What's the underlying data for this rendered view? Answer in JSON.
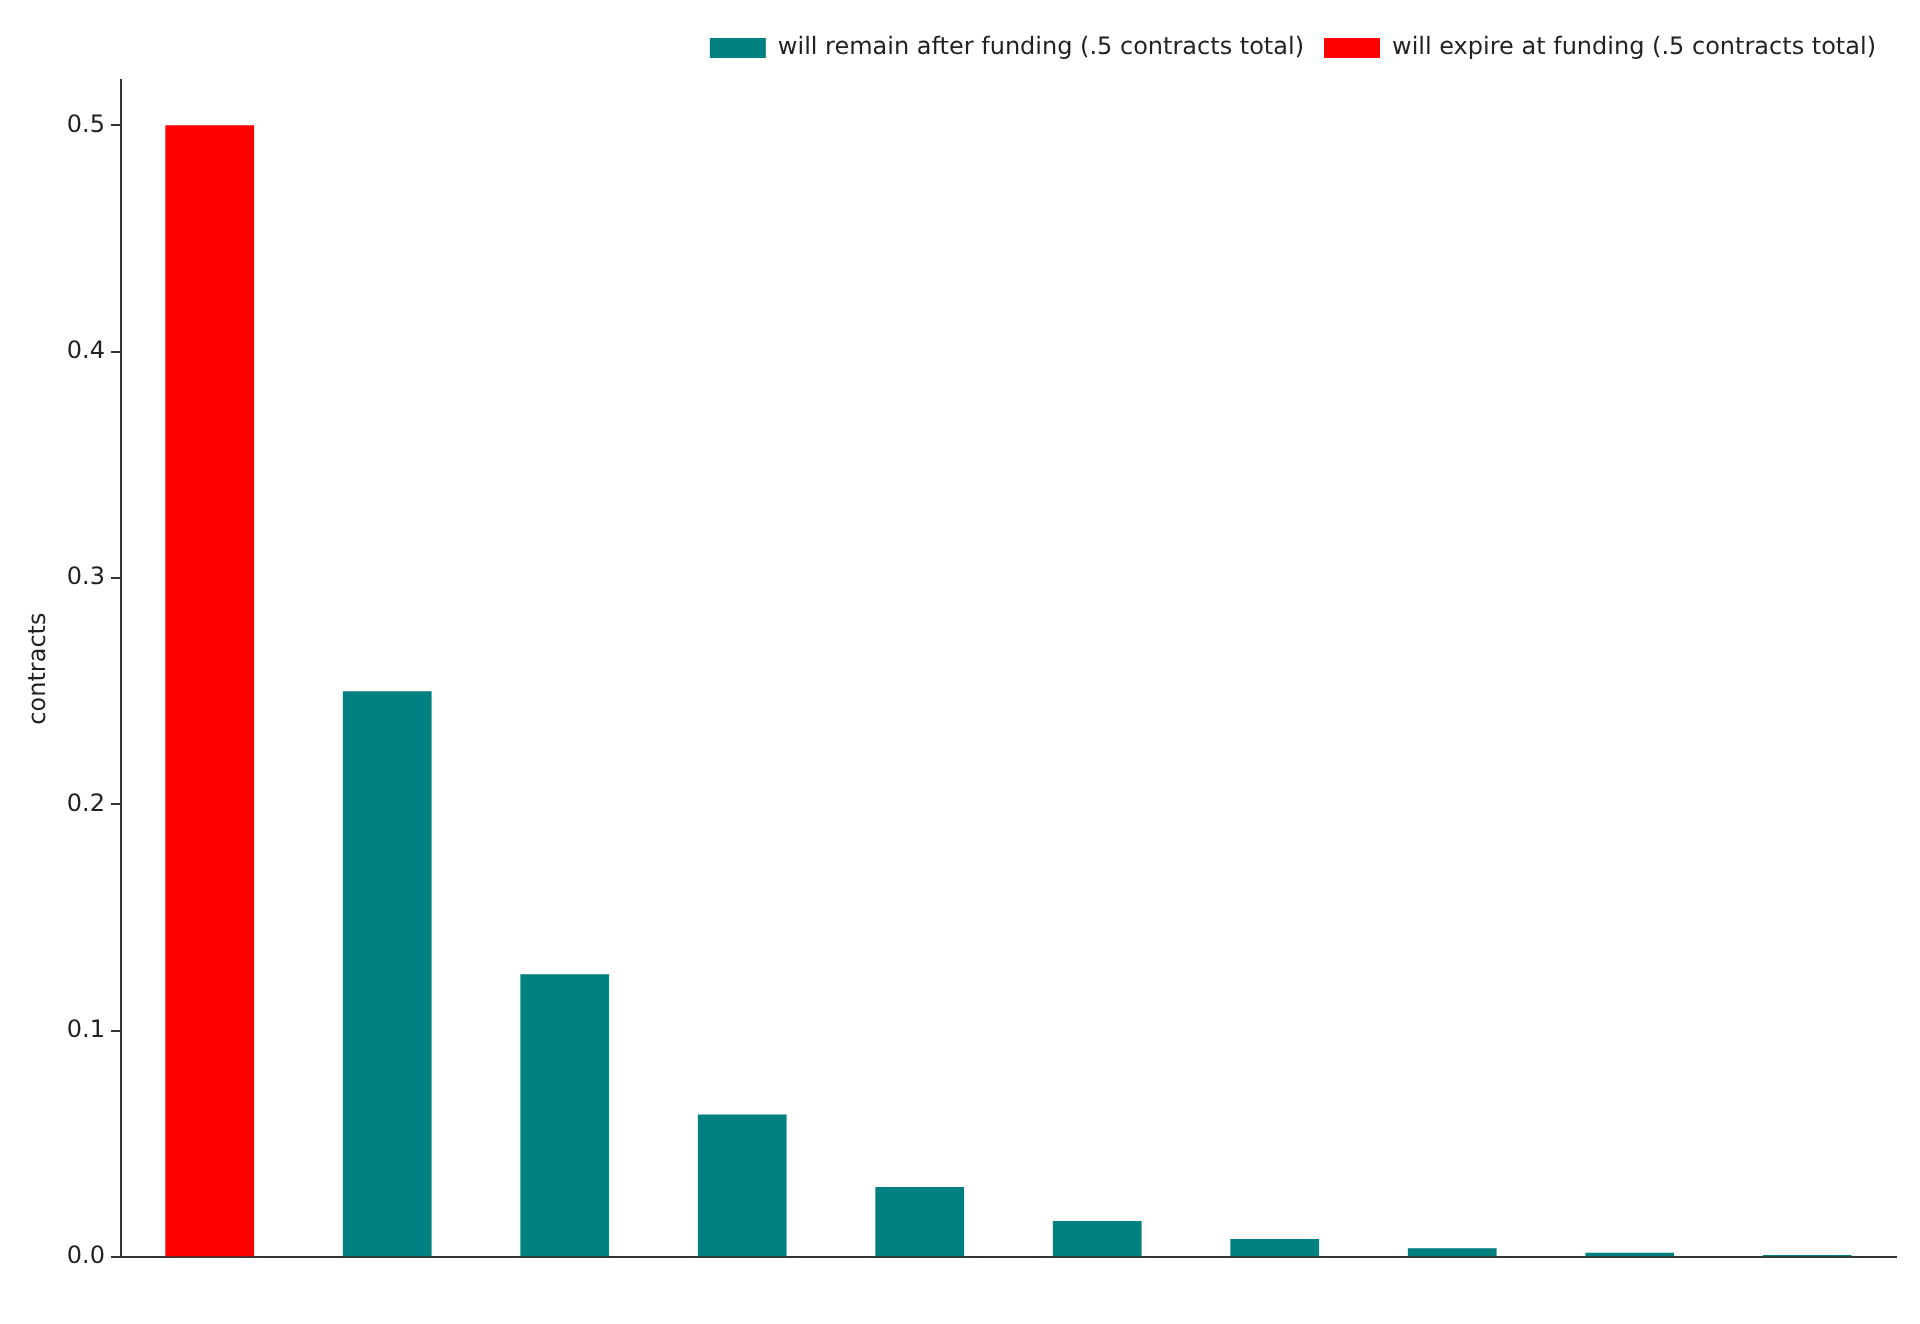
{
  "chart_data": {
    "type": "bar",
    "ylabel": "contracts",
    "categories": [
      null,
      null,
      null,
      null,
      null,
      null,
      null,
      null,
      null,
      null
    ],
    "series": [
      {
        "name": "will remain after funding (.5 contracts total)",
        "color": "#008080",
        "values": [
          null,
          0.25,
          0.125,
          0.063,
          0.031,
          0.016,
          0.008,
          0.004,
          0.002,
          0.001
        ]
      },
      {
        "name": "will expire at funding (.5 contracts total)",
        "color": "#ff0000",
        "values": [
          0.5,
          null,
          null,
          null,
          null,
          null,
          null,
          null,
          null,
          null
        ]
      }
    ],
    "ylim": [
      0,
      0.52
    ],
    "yticks": [
      {
        "value": 0,
        "label": "0.0"
      },
      0.1,
      0.2,
      0.3,
      0.4,
      0.5
    ],
    "tick_labels": "y",
    "grid": false,
    "legend": "top right"
  }
}
